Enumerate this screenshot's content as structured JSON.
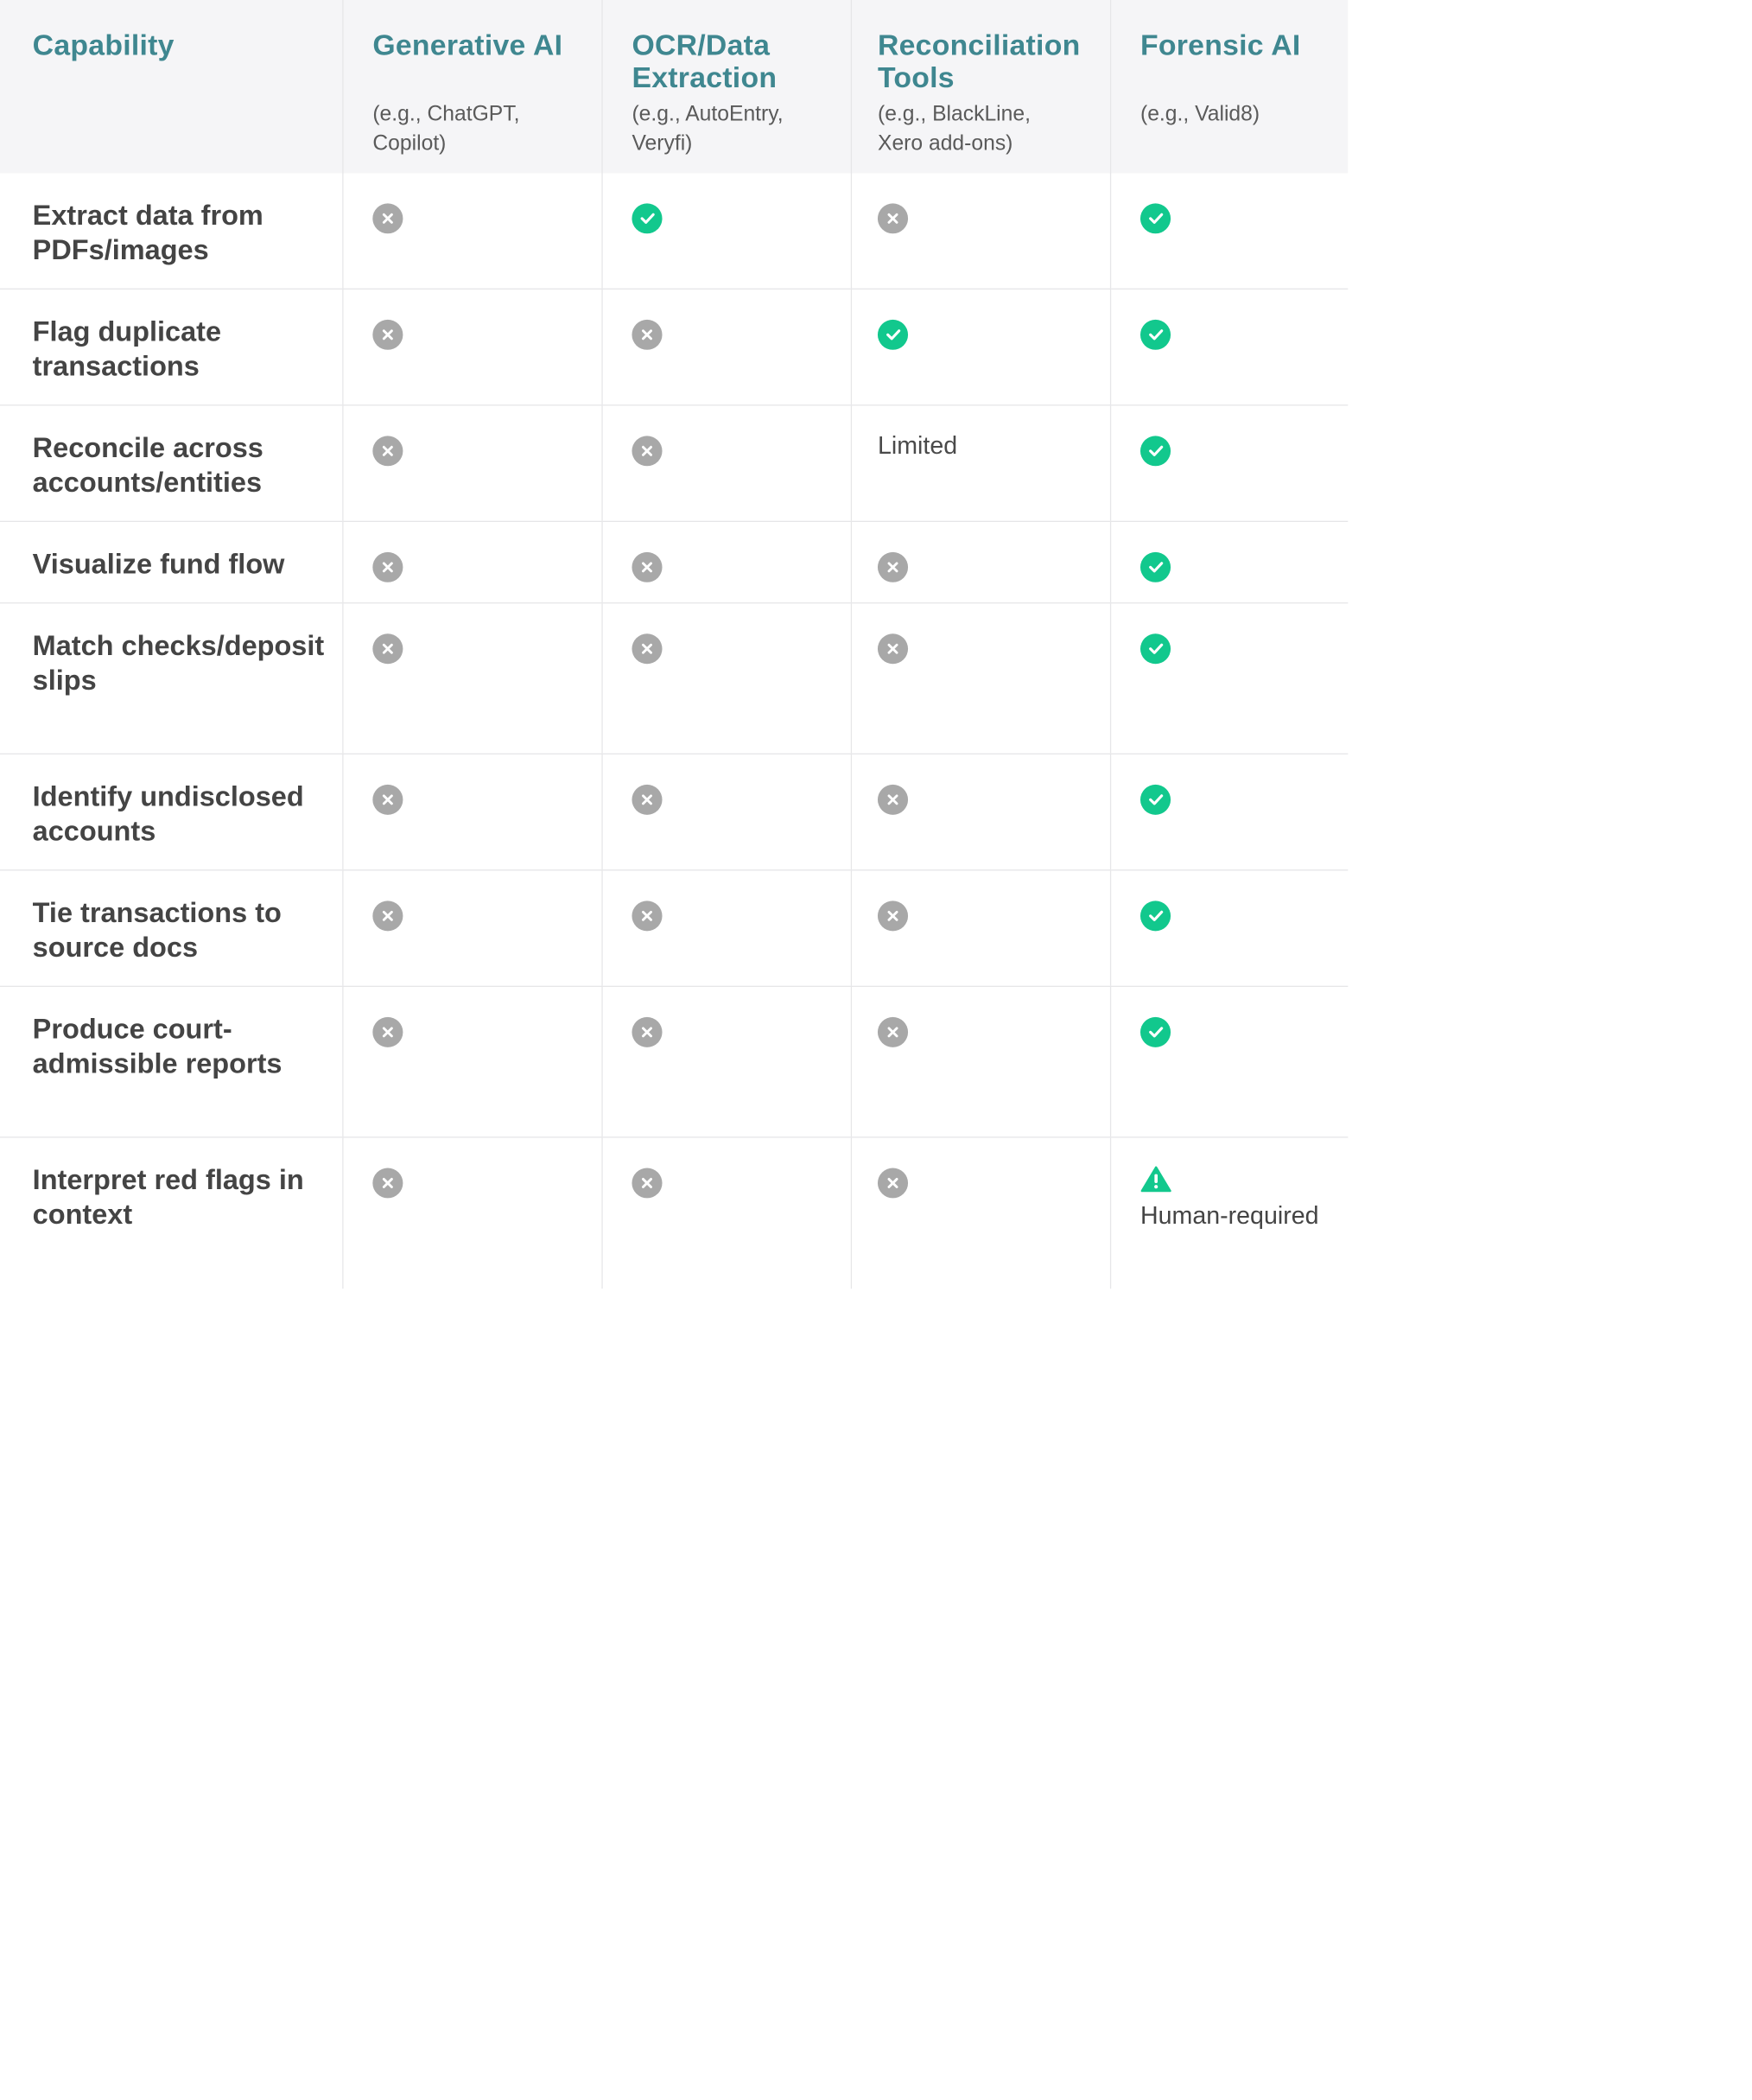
{
  "columns": [
    {
      "title": "Capability",
      "subtitle": ""
    },
    {
      "title": "Generative AI",
      "subtitle": "(e.g., ChatGPT, Copilot)"
    },
    {
      "title": "OCR/Data Extraction",
      "subtitle": "(e.g., AutoEntry, Veryfi)"
    },
    {
      "title": "Reconciliation Tools",
      "subtitle": "(e.g., BlackLine, Xero add-ons)"
    },
    {
      "title": "Forensic AI",
      "subtitle": "(e.g., Valid8)"
    }
  ],
  "rows": [
    {
      "capability": "Extract data from PDFs/images",
      "values": [
        "no",
        "yes",
        "no",
        "yes"
      ]
    },
    {
      "capability": "Flag duplicate transactions",
      "values": [
        "no",
        "no",
        "yes",
        "yes"
      ]
    },
    {
      "capability": "Reconcile across accounts/entities",
      "values": [
        "no",
        "no",
        "Limited",
        "yes"
      ]
    },
    {
      "capability": "Visualize fund flow",
      "values": [
        "no",
        "no",
        "no",
        "yes"
      ]
    },
    {
      "capability": "Match checks/deposit slips",
      "values": [
        "no",
        "no",
        "no",
        "yes"
      ]
    },
    {
      "capability": "Identify undisclosed accounts",
      "values": [
        "no",
        "no",
        "no",
        "yes"
      ]
    },
    {
      "capability": "Tie transactions to source docs",
      "values": [
        "no",
        "no",
        "no",
        "yes"
      ]
    },
    {
      "capability": "Produce court-admissible reports",
      "values": [
        "no",
        "no",
        "no",
        "yes"
      ]
    },
    {
      "capability": "Interpret red flags in context",
      "values": [
        "no",
        "no",
        "no",
        "warning:Human-required"
      ]
    }
  ],
  "colors": {
    "header_text": "#3f8790",
    "header_bg": "#f5f5f7",
    "yes": "#12c88d",
    "no": "#a8a8a8",
    "warning": "#12c88d",
    "grid": "#e6e6e8"
  },
  "icons": {
    "yes": "check-circle-icon",
    "no": "x-circle-icon",
    "warning": "warning-triangle-icon"
  }
}
